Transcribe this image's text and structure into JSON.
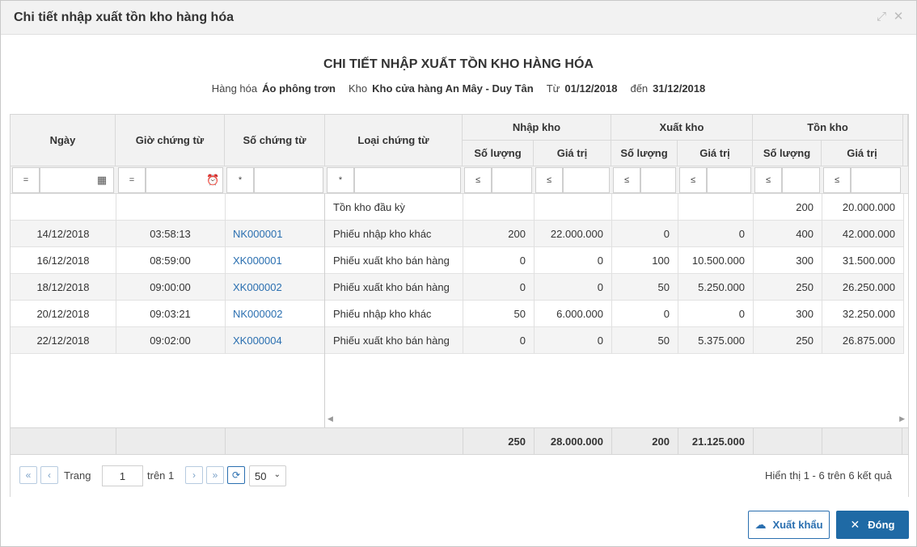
{
  "dialog": {
    "title": "Chi tiết nhập xuất tồn kho hàng hóa"
  },
  "report": {
    "title": "CHI TIẾT NHẬP XUẤT TỒN KHO HÀNG HÓA",
    "item_label": "Hàng hóa",
    "item_value": "Áo phông trơn",
    "store_label": "Kho",
    "store_value": "Kho cửa hàng An Mây - Duy Tân",
    "from_label": "Từ",
    "from_value": "01/12/2018",
    "to_label": "đến",
    "to_value": "31/12/2018"
  },
  "columns": {
    "date": "Ngày",
    "time": "Giờ chứng từ",
    "doc_no": "Số chứng từ",
    "doc_type": "Loại chứng từ",
    "import": "Nhập kho",
    "export": "Xuất kho",
    "stock": "Tồn kho",
    "qty": "Số lượng",
    "value": "Giá trị"
  },
  "filters": {
    "date_op": "=",
    "time_op": "=",
    "doc_no_op": "*",
    "doc_type_op": "*",
    "import_qty_op": "≤",
    "import_value_op": "≤",
    "export_qty_op": "≤",
    "export_value_op": "≤",
    "stock_qty_op": "≤",
    "stock_value_op": "≤"
  },
  "rows": [
    {
      "date": "",
      "time": "",
      "doc_no": "",
      "doc_type": "Tồn kho đầu kỳ",
      "in_qty": "",
      "in_val": "",
      "out_qty": "",
      "out_val": "",
      "stock_qty": "200",
      "stock_val": "20.000.000"
    },
    {
      "date": "14/12/2018",
      "time": "03:58:13",
      "doc_no": "NK000001",
      "doc_type": "Phiếu nhập kho khác",
      "in_qty": "200",
      "in_val": "22.000.000",
      "out_qty": "0",
      "out_val": "0",
      "stock_qty": "400",
      "stock_val": "42.000.000"
    },
    {
      "date": "16/12/2018",
      "time": "08:59:00",
      "doc_no": "XK000001",
      "doc_type": "Phiếu xuất kho bán hàng",
      "in_qty": "0",
      "in_val": "0",
      "out_qty": "100",
      "out_val": "10.500.000",
      "stock_qty": "300",
      "stock_val": "31.500.000"
    },
    {
      "date": "18/12/2018",
      "time": "09:00:00",
      "doc_no": "XK000002",
      "doc_type": "Phiếu xuất kho bán hàng",
      "in_qty": "0",
      "in_val": "0",
      "out_qty": "50",
      "out_val": "5.250.000",
      "stock_qty": "250",
      "stock_val": "26.250.000"
    },
    {
      "date": "20/12/2018",
      "time": "09:03:21",
      "doc_no": "NK000002",
      "doc_type": "Phiếu nhập kho khác",
      "in_qty": "50",
      "in_val": "6.000.000",
      "out_qty": "0",
      "out_val": "0",
      "stock_qty": "300",
      "stock_val": "32.250.000"
    },
    {
      "date": "22/12/2018",
      "time": "09:02:00",
      "doc_no": "XK000004",
      "doc_type": "Phiếu xuất kho bán hàng",
      "in_qty": "0",
      "in_val": "0",
      "out_qty": "50",
      "out_val": "5.375.000",
      "stock_qty": "250",
      "stock_val": "26.875.000"
    }
  ],
  "totals": {
    "in_qty": "250",
    "in_val": "28.000.000",
    "out_qty": "200",
    "out_val": "21.125.000"
  },
  "pager": {
    "page_label": "Trang",
    "page_value": "1",
    "of_label": "trên 1",
    "page_size": "50",
    "summary": "Hiển thị 1 - 6 trên 6 kết quả"
  },
  "buttons": {
    "export": "Xuất khẩu",
    "close": "Đóng"
  },
  "colors": {
    "link": "#2a6fb0",
    "primary": "#1f6aa5",
    "header_bg": "#f2f2f2"
  }
}
